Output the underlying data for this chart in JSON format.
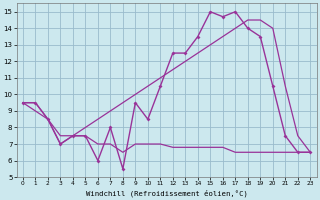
{
  "background_color": "#cce8ee",
  "grid_color": "#99bbcc",
  "line_color": "#993399",
  "xlabel": "Windchill (Refroidissement éolien,°C)",
  "xlim": [
    -0.5,
    23.5
  ],
  "ylim": [
    5,
    15.5
  ],
  "xticks": [
    0,
    1,
    2,
    3,
    4,
    5,
    6,
    7,
    8,
    9,
    10,
    11,
    12,
    13,
    14,
    15,
    16,
    17,
    18,
    19,
    20,
    21,
    22,
    23
  ],
  "yticks": [
    5,
    6,
    7,
    8,
    9,
    10,
    11,
    12,
    13,
    14,
    15
  ],
  "line1_x": [
    0,
    1,
    2,
    3,
    4,
    5,
    6,
    7,
    8,
    9,
    10,
    11,
    12,
    13,
    14,
    15,
    16,
    17,
    18,
    19,
    20,
    21,
    22,
    23
  ],
  "line1_y": [
    9.5,
    9.5,
    8.5,
    7.0,
    7.5,
    7.5,
    6.0,
    8.0,
    5.5,
    9.5,
    8.5,
    10.5,
    12.5,
    12.5,
    13.5,
    15.0,
    14.7,
    15.0,
    14.0,
    13.5,
    10.5,
    7.5,
    6.5,
    6.5
  ],
  "line2_x": [
    0,
    2,
    3,
    4,
    5,
    6,
    7,
    8,
    9,
    10,
    11,
    12,
    13,
    14,
    15,
    16,
    17,
    18,
    19,
    20,
    21,
    22,
    23
  ],
  "line2_y": [
    9.5,
    8.5,
    7.0,
    7.5,
    7.5,
    7.0,
    7.0,
    6.5,
    7.0,
    7.0,
    7.0,
    6.8,
    6.8,
    6.8,
    6.8,
    6.8,
    6.5,
    6.5,
    6.5,
    6.5,
    6.5,
    6.5,
    6.5
  ],
  "line3_x": [
    0,
    1,
    2,
    3,
    4,
    5,
    6,
    7,
    8,
    9,
    10,
    11,
    12,
    13,
    14,
    15,
    16,
    17,
    18,
    19,
    20,
    21,
    22,
    23
  ],
  "line3_y": [
    9.5,
    9.5,
    8.5,
    7.5,
    7.5,
    8.0,
    8.5,
    9.0,
    9.5,
    10.0,
    10.5,
    11.0,
    11.5,
    12.0,
    12.5,
    13.0,
    13.5,
    14.0,
    14.5,
    14.5,
    14.0,
    10.5,
    7.5,
    6.5
  ]
}
